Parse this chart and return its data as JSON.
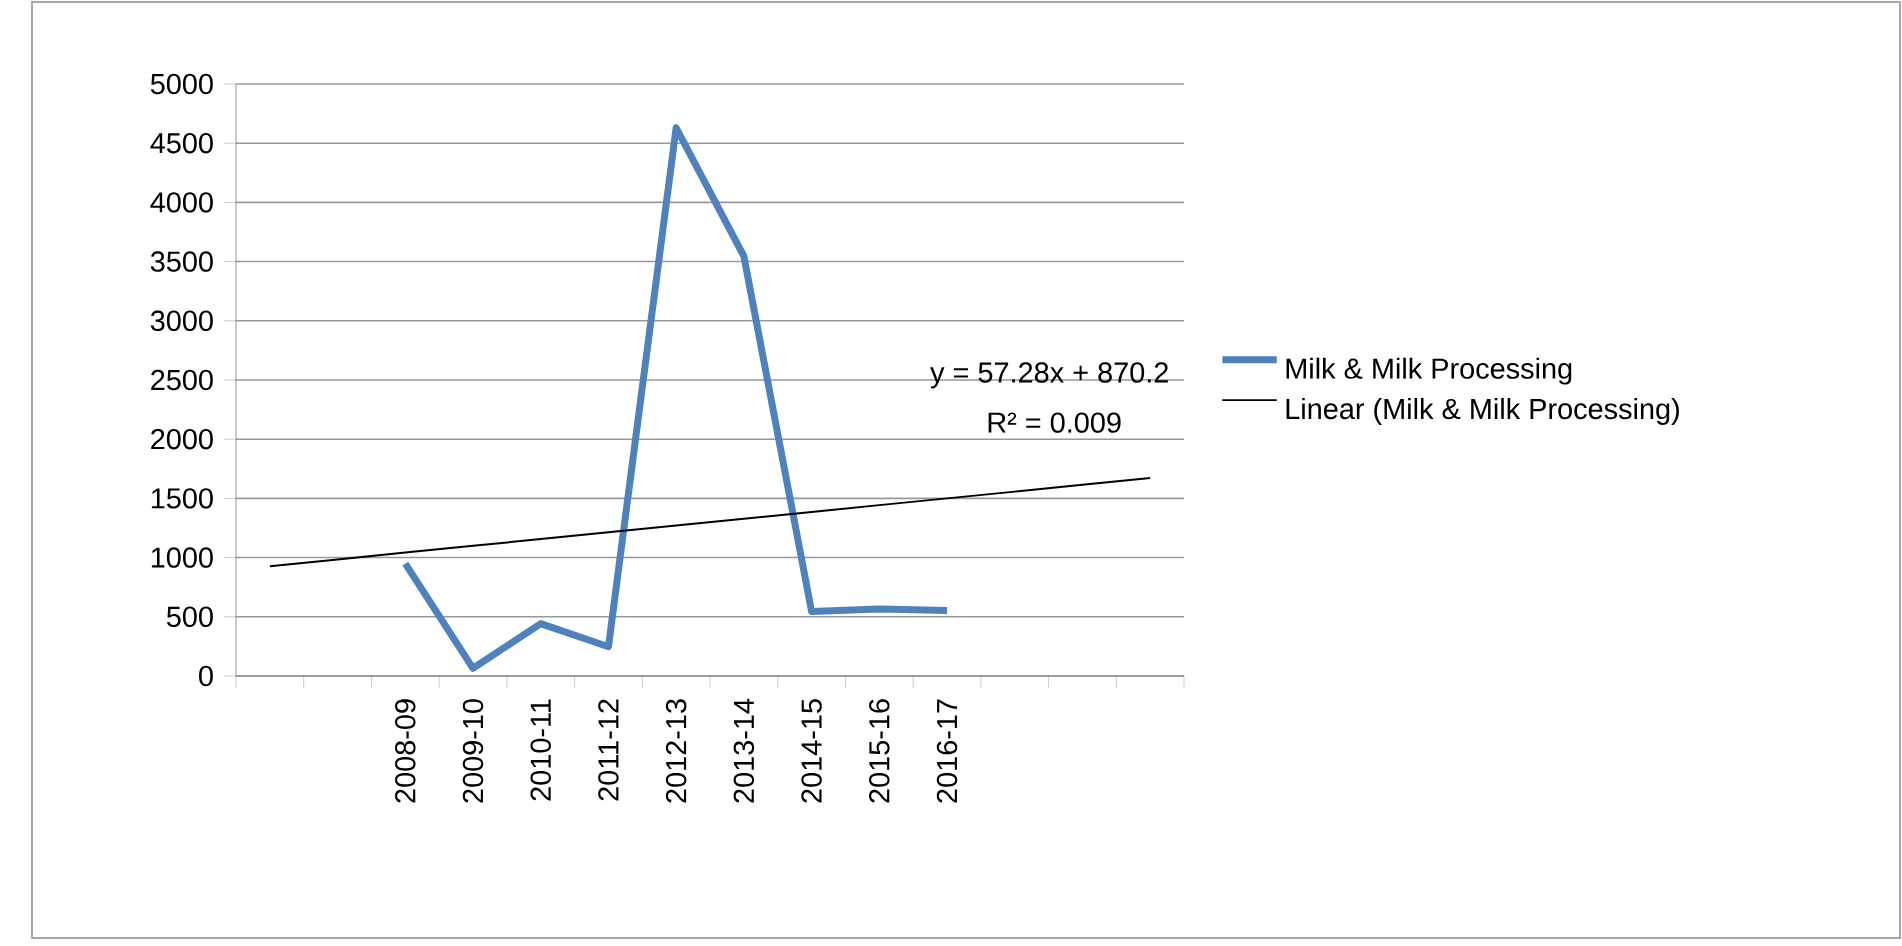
{
  "chart_data": {
    "type": "line",
    "categories": [
      null,
      null,
      "2008-09",
      "2009-10",
      "2010-11",
      "2011-12",
      "2012-13",
      "2013-14",
      "2014-15",
      "2015-16",
      "2016-17",
      null,
      null,
      null
    ],
    "series": [
      {
        "name": "Milk & Milk Processing",
        "color": "#4f81bd",
        "values": [
          null,
          null,
          948,
          65,
          442,
          247,
          4630,
          3545,
          545,
          565,
          552,
          null,
          null,
          null
        ]
      },
      {
        "name": "Linear (Milk & Milk Processing)",
        "color": "#000000",
        "values": [
          927,
          984,
          1042,
          1099,
          1156,
          1214,
          1271,
          1328,
          1385,
          1443,
          1500,
          1557,
          1615,
          1672
        ]
      }
    ],
    "ylim": [
      0,
      5000
    ],
    "yticks": [
      0,
      500,
      1000,
      1500,
      2000,
      2500,
      3000,
      3500,
      4000,
      4500,
      5000
    ],
    "grid": "y",
    "legend": "right",
    "marker": "none",
    "line_style": "solid",
    "annotations": [
      "y = 57.28x + 870.2",
      "R² = 0.009"
    ]
  }
}
